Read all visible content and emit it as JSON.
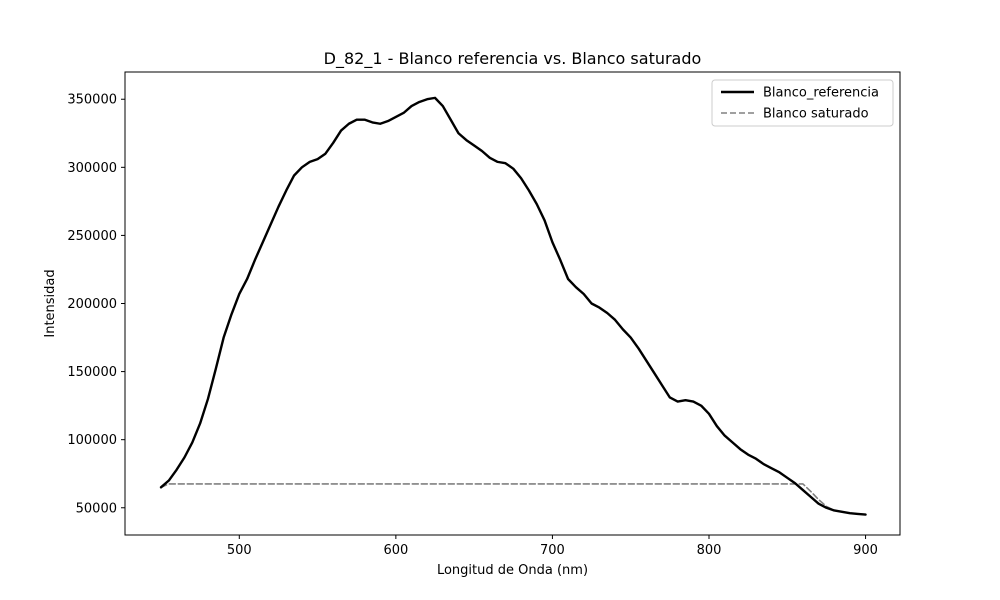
{
  "chart_data": {
    "type": "line",
    "title": "D_82_1 - Blanco referencia vs. Blanco saturado",
    "xlabel": "Longitud de Onda (nm)",
    "ylabel": "Intensidad",
    "xlim": [
      427,
      922
    ],
    "ylim": [
      30000,
      370000
    ],
    "xticks": [
      500,
      600,
      700,
      800,
      900
    ],
    "yticks": [
      50000,
      100000,
      150000,
      200000,
      250000,
      300000,
      350000
    ],
    "xtick_labels": [
      "500",
      "600",
      "700",
      "800",
      "900"
    ],
    "ytick_labels": [
      "50000",
      "100000",
      "150000",
      "200000",
      "250000",
      "300000",
      "350000"
    ],
    "grid": false,
    "legend_position": "top-right",
    "series": [
      {
        "name": "Blanco_referencia",
        "color": "#000000",
        "style": "solid",
        "x": [
          450,
          455,
          460,
          465,
          470,
          475,
          480,
          485,
          490,
          495,
          500,
          505,
          510,
          515,
          520,
          525,
          530,
          535,
          540,
          545,
          550,
          555,
          560,
          565,
          570,
          575,
          580,
          585,
          590,
          595,
          600,
          605,
          610,
          615,
          620,
          625,
          630,
          635,
          640,
          645,
          650,
          655,
          660,
          665,
          670,
          675,
          680,
          685,
          690,
          695,
          700,
          705,
          710,
          715,
          720,
          725,
          730,
          735,
          740,
          745,
          750,
          755,
          760,
          765,
          770,
          775,
          780,
          785,
          790,
          795,
          800,
          805,
          810,
          815,
          820,
          825,
          830,
          835,
          840,
          845,
          850,
          855,
          860,
          865,
          870,
          875,
          880,
          885,
          890,
          895,
          900
        ],
        "y": [
          65000,
          70000,
          78000,
          87000,
          98000,
          112000,
          130000,
          152000,
          175000,
          192000,
          207000,
          218000,
          232000,
          245000,
          258000,
          271000,
          283000,
          294000,
          300000,
          304000,
          306000,
          310000,
          318000,
          327000,
          332000,
          335000,
          335000,
          333000,
          332000,
          334000,
          337000,
          340000,
          345000,
          348000,
          350000,
          351000,
          345000,
          335000,
          325000,
          320000,
          316000,
          312000,
          307000,
          304000,
          303000,
          299000,
          292000,
          283000,
          273000,
          261000,
          245000,
          232000,
          218000,
          212000,
          207000,
          200000,
          197000,
          193000,
          188000,
          181000,
          175000,
          167000,
          158000,
          149000,
          140000,
          131000,
          128000,
          129000,
          128000,
          125000,
          119000,
          110000,
          103000,
          98000,
          93000,
          89000,
          86000,
          82000,
          79000,
          76000,
          72000,
          68000,
          63000,
          58000,
          53000,
          50000,
          48000,
          47000,
          46000,
          45500,
          45000
        ]
      },
      {
        "name": "Blanco saturado",
        "color": "#808080",
        "style": "dashed",
        "x": [
          450,
          455,
          860,
          865,
          870,
          875,
          880,
          885,
          890,
          895,
          900
        ],
        "y": [
          65000,
          67500,
          67500,
          62000,
          56000,
          51000,
          48000,
          47000,
          46000,
          45500,
          45000
        ]
      }
    ]
  }
}
